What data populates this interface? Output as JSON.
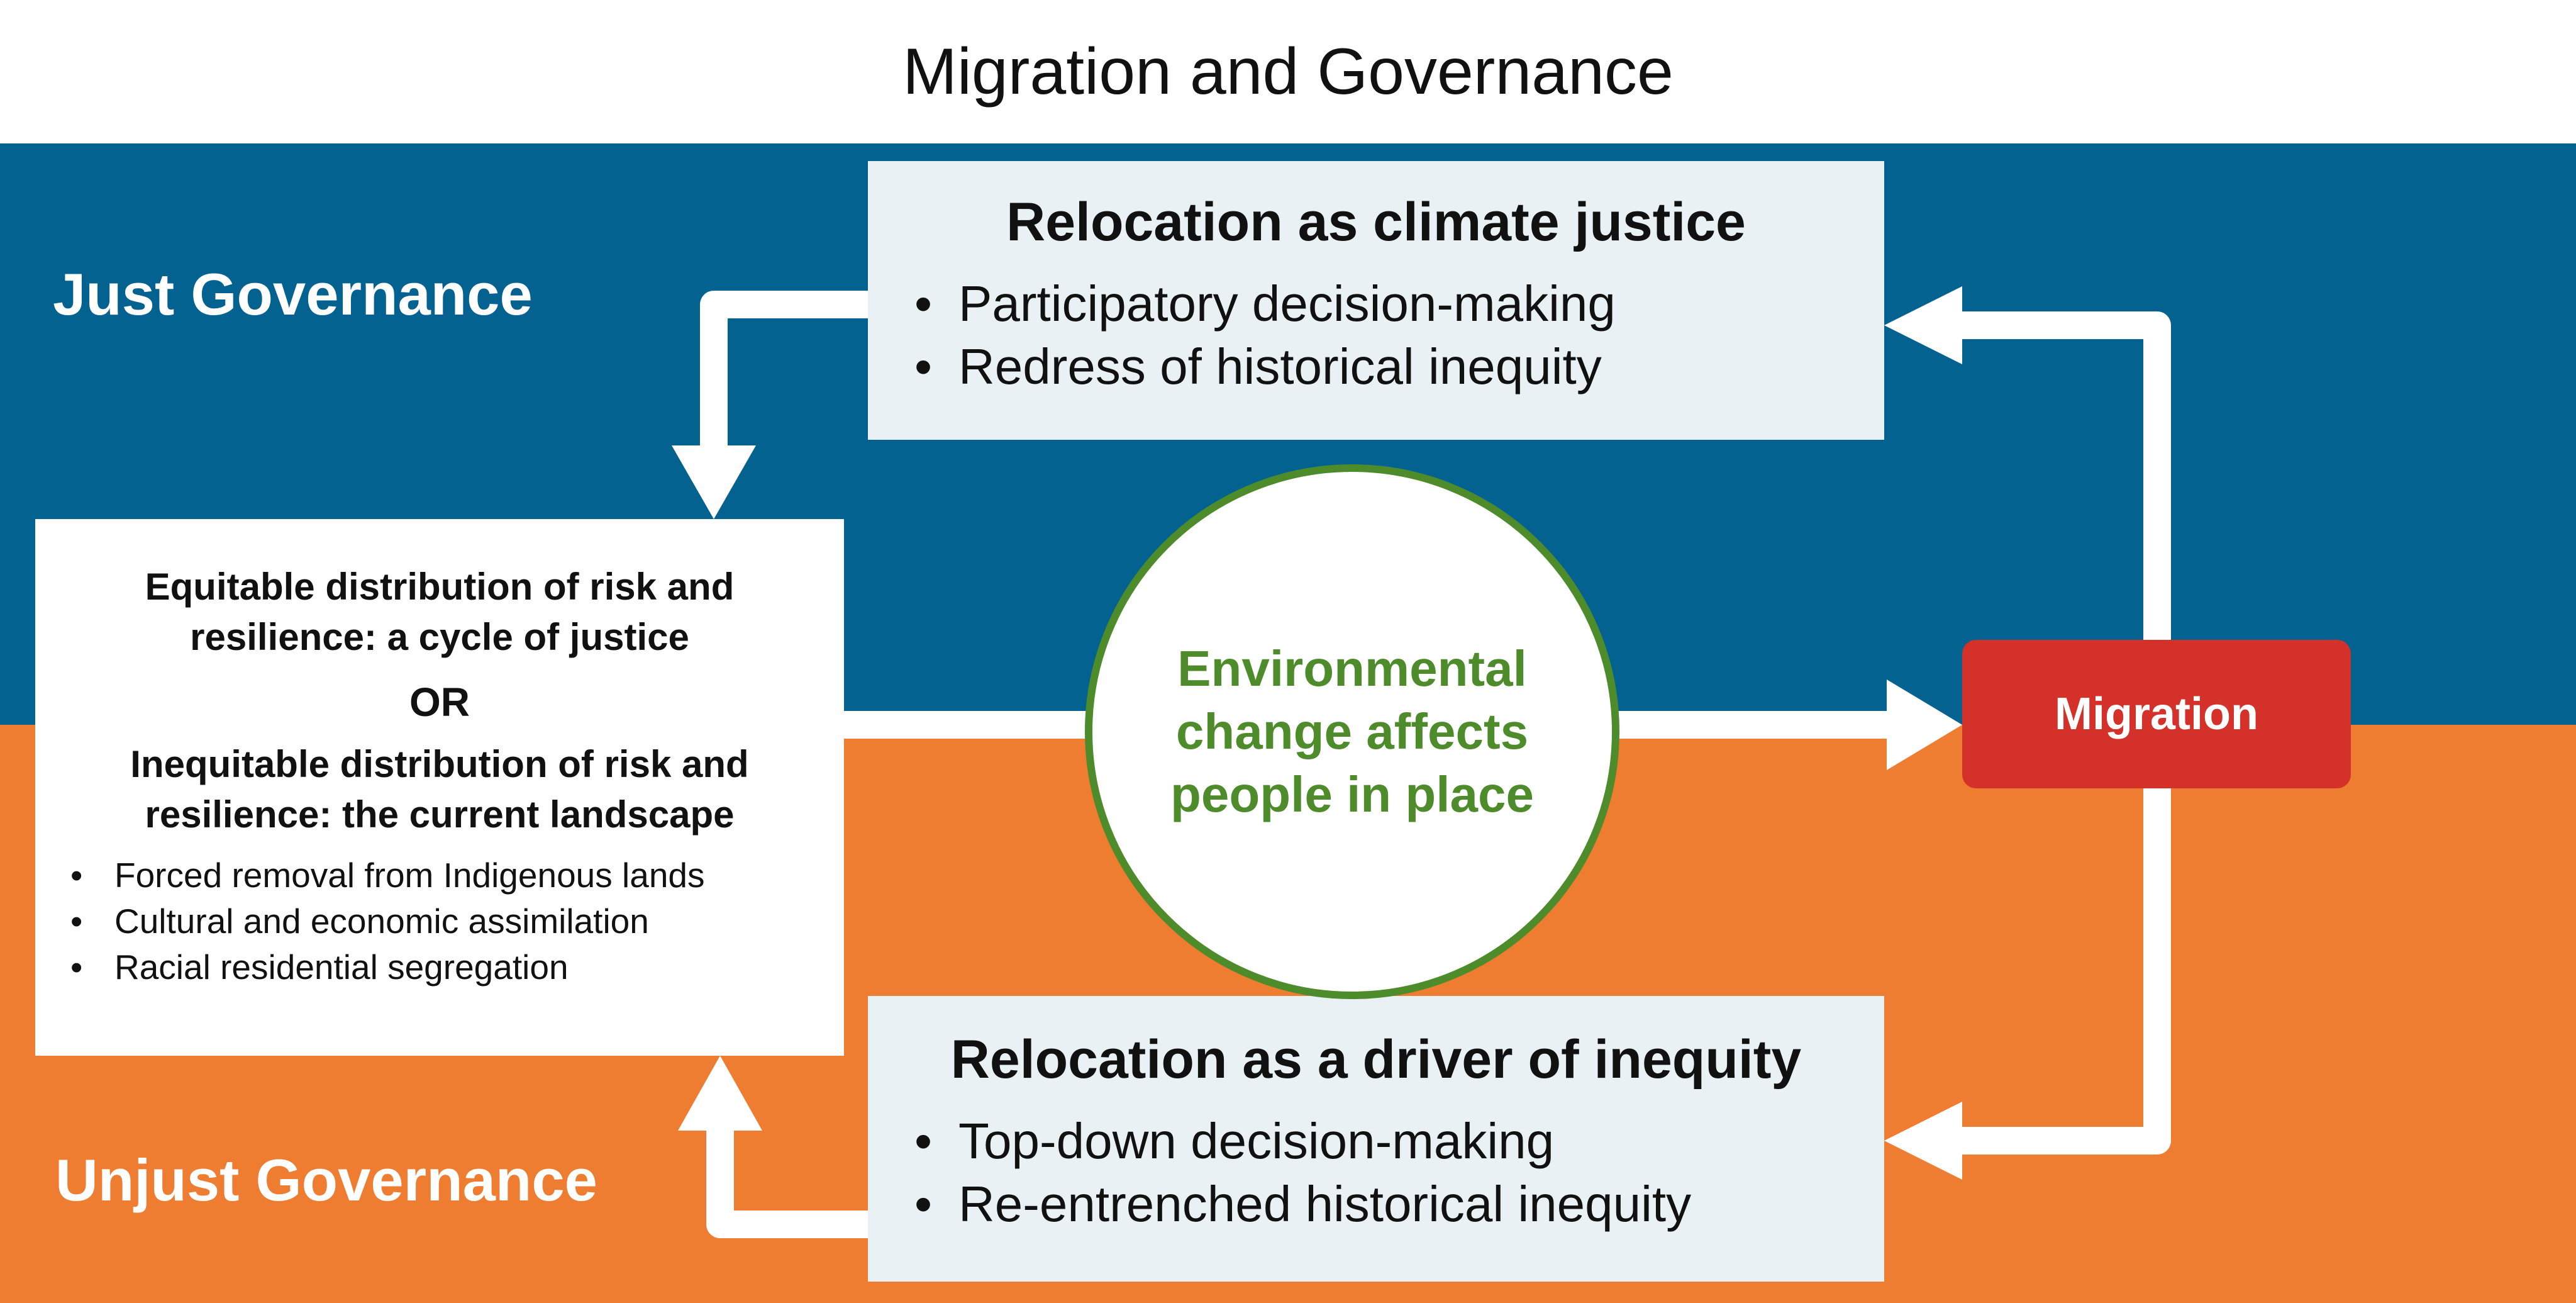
{
  "title": "Migration and Governance",
  "just_governance": "Just Governance",
  "unjust_governance": "Unjust Governance",
  "relocation_justice": {
    "title": "Relocation as climate justice",
    "bullets": [
      "Participatory decision-making",
      "Redress of historical inequity"
    ]
  },
  "relocation_inequity": {
    "title": "Relocation as a driver of inequity",
    "bullets": [
      "Top-down decision-making",
      "Re-entrenched historical inequity"
    ]
  },
  "distribution": {
    "equitable": "Equitable distribution of risk and resilience: a cycle of justice",
    "or": "OR",
    "inequitable": "Inequitable distribution of risk and resilience: the current landscape",
    "bullets": [
      "Forced removal from Indigenous lands",
      "Cultural and economic assimilation",
      "Racial residential segregation"
    ]
  },
  "environmental_change": "Environmental change affects people in place",
  "migration": "Migration",
  "colors": {
    "just_band": "#046291",
    "unjust_band": "#ee7d31",
    "box_fill": "#e9f1f5",
    "circle_accent": "#4e8c2b",
    "migration_box": "#d33129",
    "arrow": "#ffffff"
  }
}
